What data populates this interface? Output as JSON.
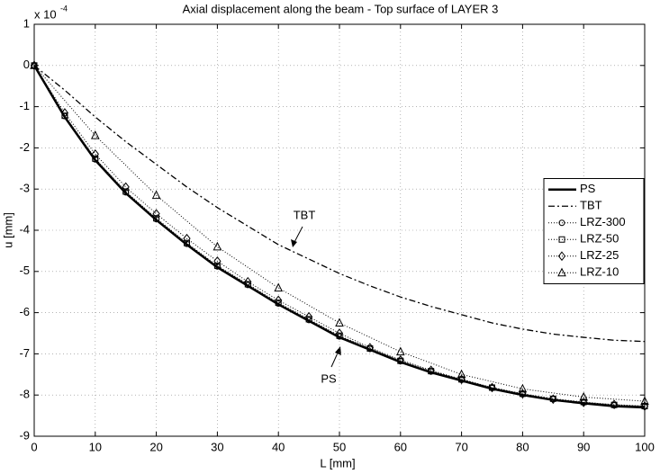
{
  "chart_data": {
    "type": "line",
    "title": "Axial displacement along the beam - Top surface of LAYER 3",
    "x_label": "L [mm]",
    "y_label": "u [mm]",
    "y_multiplier": {
      "base": "x 10",
      "exponent": "-4"
    },
    "xlim": [
      0,
      100
    ],
    "xticks": [
      0,
      10,
      20,
      30,
      40,
      50,
      60,
      70,
      80,
      90,
      100
    ],
    "ylim": [
      -9,
      1
    ],
    "yticks": [
      1,
      0,
      -1,
      -2,
      -3,
      -4,
      -5,
      -6,
      -7,
      -8,
      -9
    ],
    "grid": true,
    "legend": "east",
    "annotations": [
      "TBT",
      "PS"
    ],
    "series": [
      {
        "name": "PS",
        "color": "#000000",
        "style": "solid",
        "marker": "none",
        "x": [
          0,
          5,
          10,
          15,
          20,
          25,
          30,
          35,
          40,
          45,
          50,
          55,
          60,
          65,
          70,
          75,
          80,
          85,
          90,
          95,
          100
        ],
        "values": [
          0,
          -1.25,
          -2.3,
          -3.1,
          -3.75,
          -4.35,
          -4.9,
          -5.35,
          -5.8,
          -6.2,
          -6.6,
          -6.9,
          -7.2,
          -7.45,
          -7.65,
          -7.85,
          -8.0,
          -8.12,
          -8.2,
          -8.27,
          -8.3
        ]
      },
      {
        "name": "TBT",
        "color": "#000000",
        "style": "dashdot",
        "marker": "none",
        "x": [
          0,
          5,
          10,
          15,
          20,
          25,
          30,
          35,
          40,
          45,
          50,
          55,
          60,
          65,
          70,
          75,
          80,
          85,
          90,
          95,
          100
        ],
        "values": [
          0,
          -0.6,
          -1.25,
          -1.85,
          -2.4,
          -2.95,
          -3.45,
          -3.9,
          -4.35,
          -4.7,
          -5.05,
          -5.35,
          -5.62,
          -5.85,
          -6.05,
          -6.25,
          -6.4,
          -6.52,
          -6.6,
          -6.67,
          -6.7
        ]
      },
      {
        "name": "LRZ-300",
        "color": "#000000",
        "style": "dotted",
        "marker": "circle",
        "x": [
          0,
          5,
          10,
          15,
          20,
          25,
          30,
          35,
          40,
          45,
          50,
          55,
          60,
          65,
          70,
          75,
          80,
          85,
          90,
          95,
          100
        ],
        "values": [
          0,
          -1.23,
          -2.28,
          -3.08,
          -3.73,
          -4.33,
          -4.88,
          -5.33,
          -5.78,
          -6.18,
          -6.58,
          -6.88,
          -7.18,
          -7.43,
          -7.63,
          -7.83,
          -7.98,
          -8.1,
          -8.18,
          -8.25,
          -8.28
        ]
      },
      {
        "name": "LRZ-50",
        "color": "#000000",
        "style": "dotted",
        "marker": "square",
        "x": [
          0,
          5,
          10,
          15,
          20,
          25,
          30,
          35,
          40,
          45,
          50,
          55,
          60,
          65,
          70,
          75,
          80,
          85,
          90,
          95,
          100
        ],
        "values": [
          0,
          -1.22,
          -2.26,
          -3.06,
          -3.71,
          -4.31,
          -4.86,
          -5.31,
          -5.76,
          -6.16,
          -6.56,
          -6.87,
          -7.17,
          -7.42,
          -7.62,
          -7.82,
          -7.97,
          -8.09,
          -8.17,
          -8.24,
          -8.27
        ]
      },
      {
        "name": "LRZ-25",
        "color": "#000000",
        "style": "dotted",
        "marker": "diamond",
        "x": [
          0,
          5,
          10,
          15,
          20,
          25,
          30,
          35,
          40,
          45,
          50,
          55,
          60,
          65,
          70,
          75,
          80,
          85,
          90,
          95,
          100
        ],
        "values": [
          0,
          -1.15,
          -2.15,
          -2.95,
          -3.6,
          -4.2,
          -4.75,
          -5.25,
          -5.7,
          -6.1,
          -6.5,
          -6.85,
          -7.15,
          -7.4,
          -7.62,
          -7.82,
          -7.97,
          -8.1,
          -8.18,
          -8.23,
          -8.27
        ]
      },
      {
        "name": "LRZ-10",
        "color": "#000000",
        "style": "dotted",
        "marker": "triangle",
        "x": [
          0,
          10,
          20,
          30,
          40,
          50,
          60,
          70,
          80,
          90,
          100
        ],
        "values": [
          0,
          -1.7,
          -3.15,
          -4.4,
          -5.4,
          -6.25,
          -6.95,
          -7.5,
          -7.85,
          -8.05,
          -8.15
        ]
      }
    ]
  }
}
